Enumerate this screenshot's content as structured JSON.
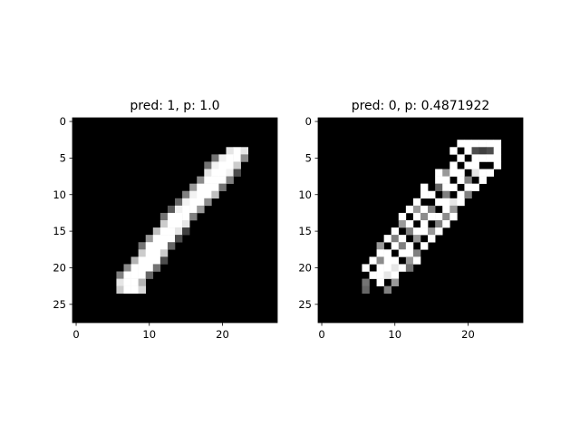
{
  "chart_data": [
    {
      "type": "heatmap",
      "title": "pred: 1, p: 1.0",
      "colormap": "gray",
      "xlim": [
        -0.5,
        27.5
      ],
      "ylim": [
        27.5,
        -0.5
      ],
      "xticks": [
        0,
        10,
        20
      ],
      "yticks": [
        0,
        5,
        10,
        15,
        20,
        25
      ],
      "image_size": [
        28,
        28
      ],
      "pixels": [
        {
          "row": 4,
          "values": {
            "21": 0.9,
            "22": 1.0,
            "23": 0.9
          }
        },
        {
          "row": 5,
          "values": {
            "19": 0.45,
            "20": 0.95,
            "21": 1.0,
            "22": 1.0,
            "23": 0.55
          }
        },
        {
          "row": 6,
          "values": {
            "18": 0.45,
            "19": 0.95,
            "20": 1.0,
            "21": 1.0,
            "22": 0.8
          }
        },
        {
          "row": 7,
          "values": {
            "18": 0.9,
            "19": 1.0,
            "20": 1.0,
            "21": 0.95,
            "22": 0.3
          }
        },
        {
          "row": 8,
          "values": {
            "17": 0.55,
            "18": 1.0,
            "19": 1.0,
            "20": 1.0,
            "21": 0.5
          }
        },
        {
          "row": 9,
          "values": {
            "16": 0.6,
            "17": 1.0,
            "18": 1.0,
            "19": 1.0,
            "20": 0.45
          }
        },
        {
          "row": 10,
          "values": {
            "15": 0.5,
            "16": 0.95,
            "17": 1.0,
            "18": 1.0,
            "19": 0.75
          }
        },
        {
          "row": 11,
          "values": {
            "14": 0.4,
            "15": 0.95,
            "16": 1.0,
            "17": 1.0,
            "18": 0.55
          }
        },
        {
          "row": 12,
          "values": {
            "13": 0.35,
            "14": 0.95,
            "15": 1.0,
            "16": 1.0,
            "17": 0.6
          }
        },
        {
          "row": 13,
          "values": {
            "12": 0.45,
            "13": 1.0,
            "14": 1.0,
            "15": 1.0,
            "16": 0.5
          }
        },
        {
          "row": 14,
          "values": {
            "12": 0.8,
            "13": 1.0,
            "14": 1.0,
            "15": 0.9
          }
        },
        {
          "row": 15,
          "values": {
            "11": 0.75,
            "12": 1.0,
            "13": 1.0,
            "14": 0.9,
            "15": 0.25
          }
        },
        {
          "row": 16,
          "values": {
            "10": 0.6,
            "11": 1.0,
            "12": 1.0,
            "13": 1.0,
            "14": 0.3
          }
        },
        {
          "row": 17,
          "values": {
            "9": 0.45,
            "10": 1.0,
            "11": 1.0,
            "12": 1.0,
            "13": 0.4
          }
        },
        {
          "row": 18,
          "values": {
            "9": 0.8,
            "10": 1.0,
            "11": 1.0,
            "12": 0.8
          }
        },
        {
          "row": 19,
          "values": {
            "8": 0.7,
            "9": 1.0,
            "10": 1.0,
            "11": 1.0,
            "12": 0.3
          }
        },
        {
          "row": 20,
          "values": {
            "7": 0.55,
            "8": 1.0,
            "9": 1.0,
            "10": 1.0,
            "11": 0.45
          }
        },
        {
          "row": 21,
          "values": {
            "6": 0.5,
            "7": 1.0,
            "8": 1.0,
            "9": 1.0,
            "10": 0.4
          }
        },
        {
          "row": 22,
          "values": {
            "6": 0.9,
            "7": 1.0,
            "8": 1.0,
            "9": 0.7
          }
        },
        {
          "row": 23,
          "values": {
            "6": 0.8,
            "7": 1.0,
            "8": 1.0,
            "9": 0.85
          }
        }
      ]
    },
    {
      "type": "heatmap",
      "title": "pred: 0, p: 0.4871922",
      "colormap": "gray",
      "xlim": [
        -0.5,
        27.5
      ],
      "ylim": [
        27.5,
        -0.5
      ],
      "xticks": [
        0,
        10,
        20
      ],
      "yticks": [
        0,
        5,
        10,
        15,
        20,
        25
      ],
      "image_size": [
        28,
        28
      ],
      "pixels": [
        {
          "row": 3,
          "values": {
            "19": 1.0,
            "20": 1.0,
            "21": 1.0,
            "22": 1.0,
            "23": 1.0,
            "24": 1.0
          }
        },
        {
          "row": 4,
          "values": {
            "18": 1.0,
            "20": 1.0,
            "21": 0.3,
            "22": 0.25,
            "23": 0.3,
            "24": 1.0
          }
        },
        {
          "row": 5,
          "values": {
            "19": 1.0,
            "21": 1.0,
            "22": 1.0,
            "23": 1.0,
            "24": 1.0
          }
        },
        {
          "row": 6,
          "values": {
            "18": 1.0,
            "20": 1.0,
            "21": 1.0,
            "24": 1.0
          }
        },
        {
          "row": 7,
          "values": {
            "16": 1.0,
            "17": 0.6,
            "18": 1.0,
            "19": 1.0,
            "21": 0.9,
            "22": 1.0,
            "23": 1.0
          }
        },
        {
          "row": 8,
          "values": {
            "16": 1.0,
            "17": 1.0,
            "19": 1.0,
            "20": 0.5,
            "22": 1.0
          }
        },
        {
          "row": 9,
          "values": {
            "14": 1.0,
            "16": 0.4,
            "17": 1.0,
            "18": 1.0,
            "20": 1.0,
            "21": 1.0
          }
        },
        {
          "row": 10,
          "values": {
            "14": 1.0,
            "15": 1.0,
            "17": 0.5,
            "19": 1.0,
            "20": 0.5
          }
        },
        {
          "row": 11,
          "values": {
            "13": 1.0,
            "16": 1.0,
            "17": 1.0,
            "18": 0.9,
            "19": 1.0
          }
        },
        {
          "row": 12,
          "values": {
            "12": 1.0,
            "13": 0.6,
            "14": 1.0,
            "15": 0.5,
            "17": 1.0,
            "18": 0.6
          }
        },
        {
          "row": 13,
          "values": {
            "11": 1.0,
            "13": 1.0,
            "14": 0.55,
            "15": 1.0,
            "16": 1.0,
            "17": 0.55,
            "18": 1.0
          }
        },
        {
          "row": 14,
          "values": {
            "11": 0.6,
            "12": 1.0,
            "14": 1.0,
            "16": 0.5,
            "17": 1.0
          }
        },
        {
          "row": 15,
          "values": {
            "10": 1.0,
            "12": 0.5,
            "13": 1.0,
            "14": 1.0,
            "15": 0.6,
            "16": 1.0
          }
        },
        {
          "row": 16,
          "values": {
            "9": 1.0,
            "10": 0.5,
            "11": 1.0,
            "13": 0.6,
            "15": 1.0
          }
        },
        {
          "row": 17,
          "values": {
            "8": 0.6,
            "10": 1.0,
            "11": 0.5,
            "12": 1.0,
            "14": 1.0
          }
        },
        {
          "row": 18,
          "values": {
            "8": 1.0,
            "9": 1.0,
            "11": 1.0,
            "12": 1.0,
            "13": 0.5
          }
        },
        {
          "row": 19,
          "values": {
            "7": 1.0,
            "8": 0.55,
            "9": 1.0,
            "10": 1.0,
            "12": 0.6,
            "13": 1.0
          }
        },
        {
          "row": 20,
          "values": {
            "6": 1.0,
            "8": 1.0,
            "9": 1.0,
            "10": 0.9,
            "11": 1.0,
            "12": 0.45
          }
        },
        {
          "row": 21,
          "values": {
            "7": 1.0,
            "8": 1.0,
            "9": 0.9,
            "10": 1.0
          }
        },
        {
          "row": 22,
          "values": {
            "6": 0.45,
            "8": 1.0,
            "10": 0.6
          }
        },
        {
          "row": 23,
          "values": {
            "6": 0.4,
            "9": 0.5
          }
        }
      ]
    }
  ]
}
